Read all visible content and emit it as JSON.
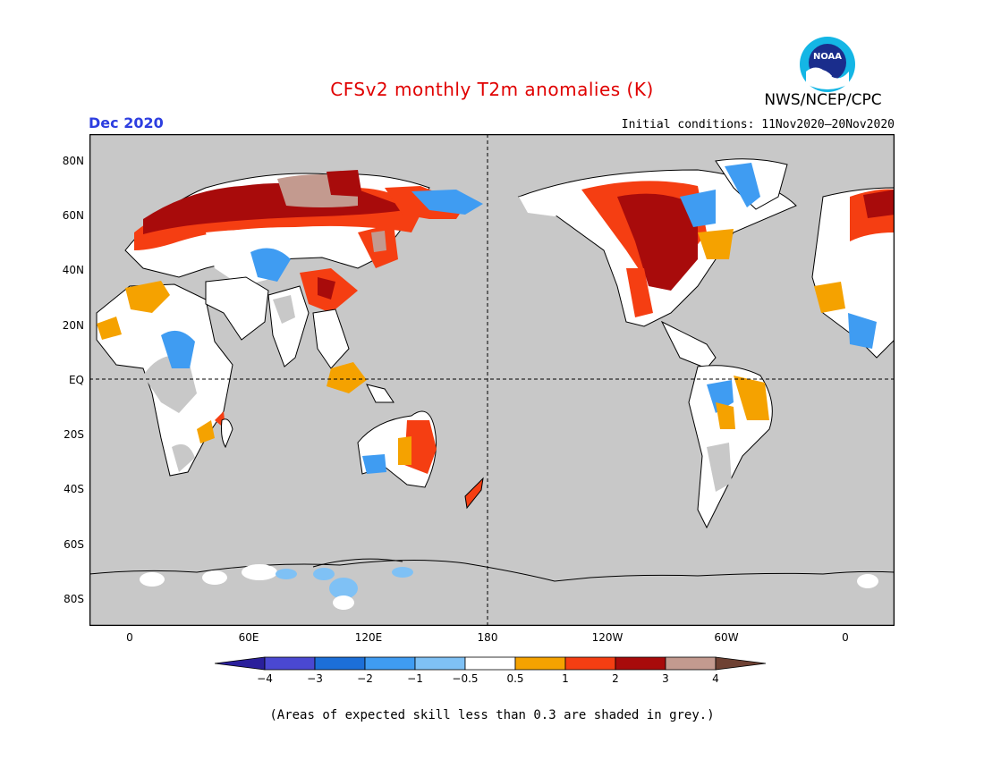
{
  "header": {
    "title": "CFSv2 monthly T2m anomalies (K)",
    "agency": "NWS/NCEP/CPC",
    "month": "Dec 2020",
    "initial_conditions": "Initial conditions: 11Nov2020–20Nov2020",
    "logo_text": "NOAA"
  },
  "map": {
    "lat_labels": [
      "80N",
      "60N",
      "40N",
      "20N",
      "EQ",
      "20S",
      "40S",
      "60S",
      "80S"
    ],
    "lon_labels": [
      "0",
      "60E",
      "120E",
      "180",
      "120W",
      "60W",
      "0"
    ],
    "background_color": "#c8c8c8"
  },
  "colorbar": {
    "labels": [
      "−4",
      "−3",
      "−2",
      "−1",
      "−0.5",
      "0.5",
      "1",
      "2",
      "3",
      "4"
    ],
    "colors": [
      "#2a1f9b",
      "#4a48d2",
      "#1c6fd8",
      "#3f9cf2",
      "#7fc1f5",
      "#ffffff",
      "#f5a200",
      "#f53e12",
      "#a80b0b",
      "#c39a8f",
      "#6e4133"
    ]
  },
  "footnote": "(Areas of expected skill less than 0.3 are shaded in grey.)"
}
